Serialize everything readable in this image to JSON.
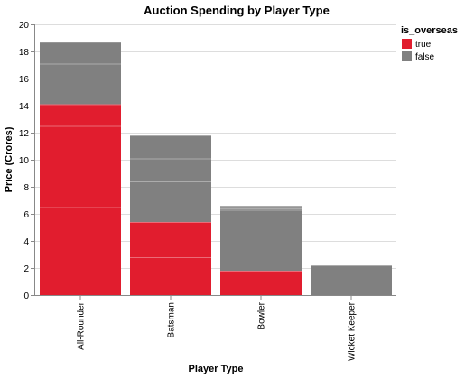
{
  "chart_data": {
    "type": "bar",
    "stacked": true,
    "title": "Auction Spending by Player Type",
    "xlabel": "Player Type",
    "ylabel": "Price (Crores)",
    "categories": [
      "All-Rounder",
      "Batsman",
      "Bowler",
      "Wicket Keeper"
    ],
    "ylim": [
      0,
      20
    ],
    "yticks": [
      0,
      2,
      4,
      6,
      8,
      10,
      12,
      14,
      16,
      18,
      20
    ],
    "grid": true,
    "legend": {
      "title": "is_overseas",
      "position": "top-right"
    },
    "series": [
      {
        "name": "true",
        "color": "#e11d2e",
        "values": [
          14.1,
          5.4,
          1.8,
          0
        ],
        "segments": [
          [
            6.5,
            6.0,
            1.6
          ],
          [
            2.8,
            2.6
          ],
          [
            1.8
          ],
          []
        ]
      },
      {
        "name": "false",
        "color": "#808080",
        "values": [
          4.6,
          6.4,
          4.8,
          2.2
        ],
        "segments": [
          [
            3.0,
            1.6
          ],
          [
            3.0,
            1.7,
            1.7
          ],
          [
            4.5,
            0.1,
            0.1,
            0.1
          ],
          [
            2.2
          ]
        ]
      }
    ]
  }
}
